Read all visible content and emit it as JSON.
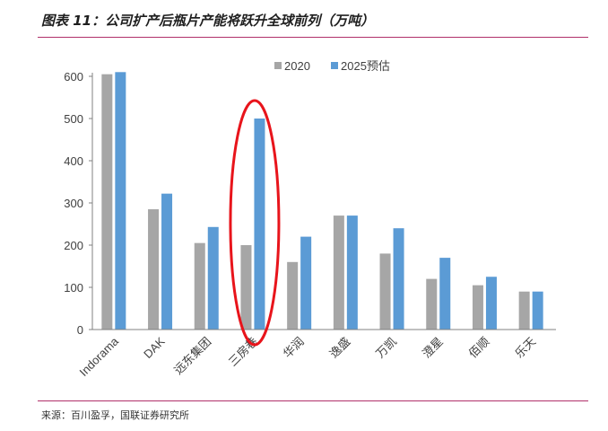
{
  "header": {
    "title": "图表 11：公司扩产后瓶片产能将跃升全球前列（万吨）"
  },
  "footer": {
    "source": "来源：百川盈孚，国联证券研究所"
  },
  "chart_data": {
    "type": "bar",
    "title": "图表 11：公司扩产后瓶片产能将跃升全球前列（万吨）",
    "xlabel": "",
    "ylabel": "",
    "categories": [
      "Indorama",
      "DAK",
      "远东集团",
      "三房巷",
      "华润",
      "逸盛",
      "万凯",
      "澄星",
      "佰顺",
      "乐天"
    ],
    "series": [
      {
        "name": "2020",
        "color": "#a6a6a6",
        "values": [
          605,
          285,
          205,
          200,
          160,
          270,
          180,
          120,
          105,
          90
        ]
      },
      {
        "name": "2025预估",
        "color": "#5b9bd5",
        "values": [
          610,
          322,
          243,
          500,
          220,
          270,
          240,
          170,
          125,
          90
        ]
      }
    ],
    "ylim": [
      0,
      600
    ],
    "yticks": [
      0,
      100,
      200,
      300,
      400,
      500,
      600
    ],
    "grid": false,
    "legend": "top-center",
    "highlight": {
      "category": "三房巷",
      "color": "#e8141b"
    }
  }
}
